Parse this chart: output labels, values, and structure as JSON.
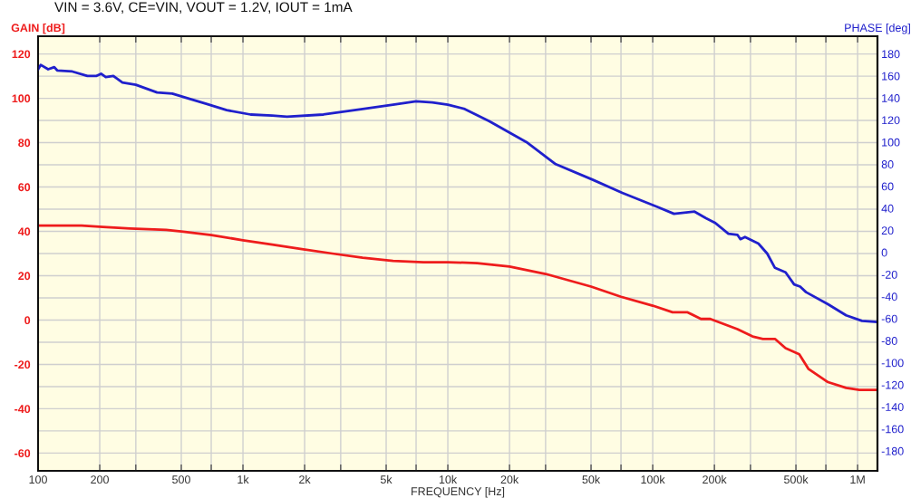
{
  "chart_data": {
    "type": "line",
    "title": "VIN = 3.6V, CE=VIN, VOUT = 1.2V, IOUT = 1mA",
    "xlabel": "FREQUENCY [Hz]",
    "ylabel": "GAIN [dB]",
    "y2label": "PHASE [deg]",
    "log": "x",
    "grid": true,
    "marker": "none",
    "line_style": "solid",
    "xlim": [
      100,
      1250000
    ],
    "xticks": [
      100,
      200,
      {
        "value": 300,
        "label": null
      },
      500,
      {
        "value": 700,
        "label": null
      },
      {
        "value": 1000,
        "label": "1k"
      },
      {
        "value": 2000,
        "label": "2k"
      },
      {
        "value": 3000,
        "label": null
      },
      {
        "value": 5000,
        "label": "5k"
      },
      {
        "value": 7000,
        "label": null
      },
      {
        "value": 10000,
        "label": "10k"
      },
      {
        "value": 20000,
        "label": "20k"
      },
      {
        "value": 30000,
        "label": null
      },
      {
        "value": 50000,
        "label": "50k"
      },
      {
        "value": 70000,
        "label": null
      },
      {
        "value": 100000,
        "label": "100k"
      },
      {
        "value": 200000,
        "label": "200k"
      },
      {
        "value": 300000,
        "label": null
      },
      {
        "value": 500000,
        "label": "500k"
      },
      {
        "value": 700000,
        "label": null
      },
      {
        "value": 1000000,
        "label": "1M"
      }
    ],
    "ylim": [
      -68,
      128
    ],
    "yticks": [
      -60,
      {
        "value": -50,
        "label": null
      },
      -40,
      {
        "value": -30,
        "label": null
      },
      -20,
      {
        "value": -10,
        "label": null
      },
      0,
      {
        "value": 10,
        "label": null
      },
      20,
      {
        "value": 30,
        "label": null
      },
      40,
      {
        "value": 50,
        "label": null
      },
      60,
      {
        "value": 70,
        "label": null
      },
      80,
      {
        "value": 90,
        "label": null
      },
      100,
      {
        "value": 110,
        "label": null
      },
      120
    ],
    "y2lim": [
      -198,
      196
    ],
    "y2ticks": [
      -180,
      -160,
      -140,
      -120,
      -100,
      -80,
      -60,
      -40,
      -20,
      0,
      20,
      40,
      60,
      80,
      100,
      120,
      140,
      160,
      180
    ],
    "series": [
      {
        "color": "#ee1c1c",
        "x": [
          100,
          163,
          207,
          281,
          422,
          500,
          702,
          1000,
          1390,
          1940,
          2730,
          3840,
          5400,
          7600,
          10000,
          13900,
          20000,
          30000,
          50000,
          70000,
          100000,
          125000,
          148000,
          172000,
          191000,
          259000,
          307000,
          345000,
          395000,
          445000,
          519000,
          575000,
          717000,
          879000,
          1020000,
          1230000
        ],
        "values": [
          42.6,
          42.6,
          42,
          41.3,
          40.7,
          40,
          38.3,
          36,
          34,
          32,
          30,
          28.1,
          26.7,
          26.1,
          26.1,
          25.7,
          24.1,
          20.8,
          15.1,
          10.5,
          6.5,
          3.5,
          3.5,
          0.5,
          0.5,
          -4.1,
          -7.4,
          -8.5,
          -8.5,
          -12.7,
          -15.4,
          -22,
          -28,
          -30.6,
          -31.5,
          -31.5
        ]
      },
      {
        "color": "#2020cc",
        "axis": "y2",
        "x": [
          100,
          103,
          112,
          120,
          124,
          147,
          174,
          193,
          203,
          214,
          233,
          258,
          300,
          381,
          452,
          553,
          656,
          833,
          1090,
          1390,
          1640,
          2470,
          3840,
          5400,
          7000,
          8400,
          10000,
          12100,
          15900,
          24200,
          33600,
          50800,
          71000,
          106000,
          127000,
          160000,
          182000,
          201000,
          234000,
          259000,
          268000,
          282000,
          328000,
          362000,
          395000,
          445000,
          490000,
          524000,
          560000,
          717000,
          879000,
          1050000,
          1230000
        ],
        "values": [
          166,
          170,
          166,
          168,
          165,
          164,
          160,
          160,
          162,
          159,
          160,
          154,
          152,
          145,
          144,
          139,
          135,
          129,
          125,
          124,
          123,
          125,
          130,
          134,
          137,
          136,
          134,
          130,
          119,
          100,
          80,
          66,
          54,
          41,
          35,
          37,
          31,
          27,
          17,
          16,
          12,
          14,
          8,
          -1,
          -14,
          -18,
          -29,
          -31,
          -36,
          -47,
          -57,
          -62,
          -63
        ]
      }
    ]
  }
}
